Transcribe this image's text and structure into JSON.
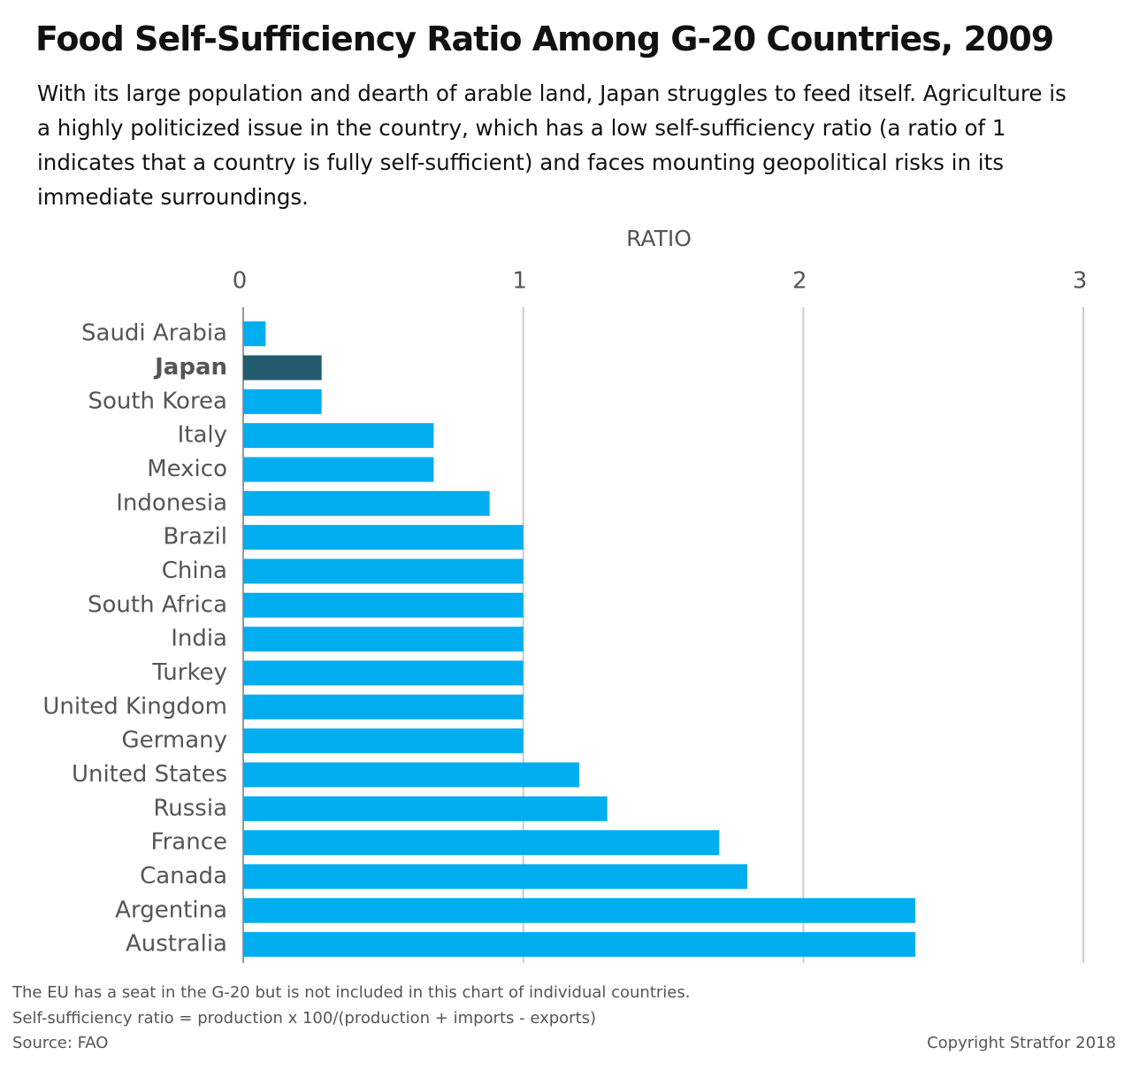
{
  "chart_data": {
    "type": "barh",
    "title": "Food Self-Sufficiency Ratio Among G-20 Countries, 2009",
    "subtitle": "With its large population and dearth of arable land, Japan struggles to feed itself. Agriculture is a highly politicized issue in the country, which has a low self-sufficiency ratio (a ratio of 1 indicates that a country is fully self-sufficient) and faces mounting geopolitical risks in its immediate surroundings.",
    "xlabel": "RATIO",
    "categories": [
      "Saudi Arabia",
      "Japan",
      "South Korea",
      "Italy",
      "Mexico",
      "Indonesia",
      "Brazil",
      "China",
      "South Africa",
      "India",
      "Turkey",
      "United Kingdom",
      "Germany",
      "United States",
      "Russia",
      "France",
      "Canada",
      "Argentina",
      "Australia"
    ],
    "values": [
      0.08,
      0.28,
      0.28,
      0.68,
      0.68,
      0.88,
      1,
      1,
      1,
      1,
      1,
      1,
      1,
      1.2,
      1.3,
      1.7,
      1.8,
      2.4,
      2.4
    ],
    "colors": [
      "#00adef",
      "#235a6e",
      "#00adef",
      "#00adef",
      "#00adef",
      "#00adef",
      "#00adef",
      "#00adef",
      "#00adef",
      "#00adef",
      "#00adef",
      "#00adef",
      "#00adef",
      "#00adef",
      "#00adef",
      "#00adef",
      "#00adef",
      "#00adef",
      "#00adef"
    ],
    "highlight_color": "#235a6e",
    "xlim": [
      0,
      3
    ],
    "xticks": [
      0,
      1,
      2,
      3
    ],
    "grid": true,
    "notes": [
      "The EU has a seat in the G-20 but is not included in this chart of individual countries.",
      "Self-sufficiency ratio = production x 100/(production + imports - exports)",
      "Source: FAO"
    ],
    "copyright": "Copyright Stratfor 2018"
  }
}
